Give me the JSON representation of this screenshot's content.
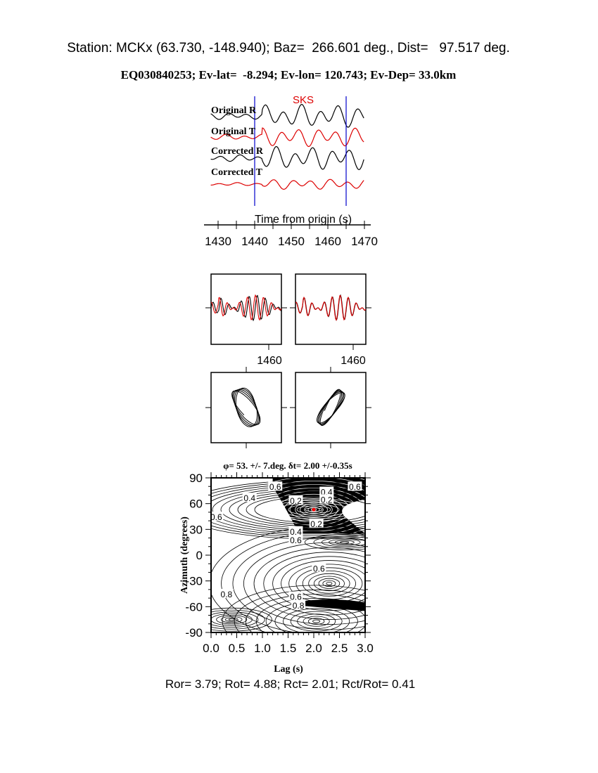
{
  "header": {
    "station_line": "Station: MCKx (63.730, -148.940); Baz=  266.601 deg., Dist=   97.517 deg.",
    "event_line": "EQ030840253; Ev-lat=  -8.294; Ev-lon= 120.743; Ev-Dep= 33.0km"
  },
  "footer": {
    "ratios": "Ror= 3.79; Rot= 4.88; Rct= 2.01; Rct/Rot= 0.41"
  },
  "colors": {
    "radial": "#000000",
    "transverse": "#dd0000",
    "window": "#0000cc",
    "best_fit": "#ff0000"
  },
  "chart_data": [
    {
      "type": "line",
      "phase_label": "SKS",
      "xlabel": "Time from origin (s)",
      "xlim": [
        1428,
        1470
      ],
      "xticks": [
        "1430",
        "1440",
        "1450",
        "1460",
        "1470"
      ],
      "window": [
        1440,
        1465
      ],
      "series": [
        {
          "name": "Original R",
          "color": "#000000"
        },
        {
          "name": "Original T",
          "color": "#dd0000"
        },
        {
          "name": "Corrected R",
          "color": "#000000"
        },
        {
          "name": "Corrected T",
          "color": "#dd0000"
        }
      ]
    },
    {
      "type": "line",
      "panel": "waveform-overlay-original",
      "xtick_label": "1460"
    },
    {
      "type": "line",
      "panel": "waveform-overlay-corrected",
      "xtick_label": "1460"
    },
    {
      "type": "line",
      "panel": "particle-motion-original"
    },
    {
      "type": "line",
      "panel": "particle-motion-corrected"
    },
    {
      "type": "heatmap",
      "title": "φ= 53. +/- 7.deg. δt= 2.00 +/-0.35s",
      "xlabel": "Lag (s)",
      "ylabel": "Azimuth (degrees)",
      "xlim": [
        0,
        3
      ],
      "ylim": [
        -90,
        90
      ],
      "xticks": [
        "0.0",
        "0.5",
        "1.0",
        "1.5",
        "2.0",
        "2.5",
        "3.0"
      ],
      "yticks": [
        "90",
        "60",
        "30",
        "0",
        "-30",
        "-60",
        "-90"
      ],
      "best_fit": {
        "lag": 2.0,
        "azimuth": 53
      },
      "contour_labels": [
        {
          "text": "0.6",
          "lag": 1.25,
          "azimuth": 80
        },
        {
          "text": "0.4",
          "lag": 0.75,
          "azimuth": 67
        },
        {
          "text": "0.2",
          "lag": 1.65,
          "azimuth": 64
        },
        {
          "text": "0.4",
          "lag": 2.25,
          "azimuth": 74
        },
        {
          "text": "0.2",
          "lag": 2.25,
          "azimuth": 65
        },
        {
          "text": "0.6",
          "lag": 2.8,
          "azimuth": 80
        },
        {
          "text": "0.6",
          "lag": 0.1,
          "azimuth": 45
        },
        {
          "text": "0.2",
          "lag": 2.05,
          "azimuth": 37
        },
        {
          "text": "0.4",
          "lag": 1.65,
          "azimuth": 28
        },
        {
          "text": "0.6",
          "lag": 1.65,
          "azimuth": 18
        },
        {
          "text": "0.6",
          "lag": 2.1,
          "azimuth": -15
        },
        {
          "text": "0.8",
          "lag": 0.3,
          "azimuth": -45
        },
        {
          "text": "0.6",
          "lag": 1.65,
          "azimuth": -48
        },
        {
          "text": "0.8",
          "lag": 1.7,
          "azimuth": -58
        }
      ]
    }
  ]
}
